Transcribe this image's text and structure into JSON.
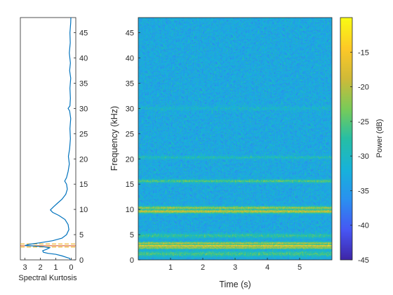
{
  "chart_data": [
    {
      "type": "line",
      "xlabel": "Spectral Kurtosis",
      "xlim": [
        3.3,
        -0.3
      ],
      "x_reversed": true,
      "x_ticks": [
        "3",
        "2",
        "1",
        "0"
      ],
      "y_ticks": [
        "0",
        "5",
        "10",
        "15",
        "20",
        "25",
        "30",
        "35",
        "40",
        "45"
      ],
      "ylim": [
        0,
        48
      ],
      "y_axis_location": "right",
      "series": [
        {
          "color": "#0072BD",
          "points": [
            {
              "x": 0.05,
              "y": 0.0
            },
            {
              "x": 0.1,
              "y": 0.3
            },
            {
              "x": 0.3,
              "y": 0.5
            },
            {
              "x": 0.6,
              "y": 0.8
            },
            {
              "x": 1.0,
              "y": 1.1
            },
            {
              "x": 1.5,
              "y": 1.3
            },
            {
              "x": 1.8,
              "y": 1.5
            },
            {
              "x": 1.85,
              "y": 1.8
            },
            {
              "x": 1.6,
              "y": 2.1
            },
            {
              "x": 1.4,
              "y": 2.4
            },
            {
              "x": 1.8,
              "y": 2.6
            },
            {
              "x": 2.4,
              "y": 2.75
            },
            {
              "x": 3.0,
              "y": 2.85
            },
            {
              "x": 2.7,
              "y": 3.1
            },
            {
              "x": 2.0,
              "y": 3.4
            },
            {
              "x": 1.2,
              "y": 3.8
            },
            {
              "x": 0.6,
              "y": 4.3
            },
            {
              "x": 0.3,
              "y": 5.0
            },
            {
              "x": 0.15,
              "y": 6.0
            },
            {
              "x": 0.2,
              "y": 7.0
            },
            {
              "x": 0.4,
              "y": 8.0
            },
            {
              "x": 0.8,
              "y": 8.8
            },
            {
              "x": 1.2,
              "y": 9.4
            },
            {
              "x": 1.35,
              "y": 9.9
            },
            {
              "x": 1.15,
              "y": 10.5
            },
            {
              "x": 0.9,
              "y": 11.2
            },
            {
              "x": 0.6,
              "y": 12.0
            },
            {
              "x": 0.35,
              "y": 13.0
            },
            {
              "x": 0.25,
              "y": 14.0
            },
            {
              "x": 0.3,
              "y": 15.0
            },
            {
              "x": 0.42,
              "y": 15.6
            },
            {
              "x": 0.3,
              "y": 16.3
            },
            {
              "x": 0.2,
              "y": 17.5
            },
            {
              "x": 0.12,
              "y": 19.0
            },
            {
              "x": 0.18,
              "y": 20.5
            },
            {
              "x": 0.1,
              "y": 22.0
            },
            {
              "x": 0.05,
              "y": 24.0
            },
            {
              "x": 0.08,
              "y": 26.0
            },
            {
              "x": 0.03,
              "y": 28.0
            },
            {
              "x": 0.1,
              "y": 29.5
            },
            {
              "x": 0.2,
              "y": 30.0
            },
            {
              "x": 0.08,
              "y": 30.5
            },
            {
              "x": 0.05,
              "y": 32.0
            },
            {
              "x": 0.08,
              "y": 34.0
            },
            {
              "x": 0.03,
              "y": 36.0
            },
            {
              "x": 0.1,
              "y": 37.5
            },
            {
              "x": 0.05,
              "y": 39.0
            },
            {
              "x": 0.12,
              "y": 41.0
            },
            {
              "x": 0.06,
              "y": 43.0
            },
            {
              "x": 0.08,
              "y": 45.0
            },
            {
              "x": 0.03,
              "y": 47.0
            },
            {
              "x": 0.02,
              "y": 48.0
            }
          ]
        }
      ],
      "threshold_lines": [
        {
          "y": 2.55,
          "color": "#EDB120",
          "style": "dashed"
        },
        {
          "y": 2.8,
          "color": "#D95319",
          "style": "solid"
        },
        {
          "y": 3.15,
          "color": "#EDB120",
          "style": "dashed"
        }
      ]
    },
    {
      "type": "heatmap",
      "xlabel": "Time (s)",
      "ylabel": "Frequency (kHz)",
      "xlim": [
        0,
        6
      ],
      "ylim": [
        0,
        48
      ],
      "x_ticks": [
        "1",
        "2",
        "3",
        "4",
        "5"
      ],
      "y_ticks": [
        "0",
        "5",
        "10",
        "15",
        "20",
        "25",
        "30",
        "35",
        "40",
        "45"
      ],
      "colormap": "parula",
      "background_power_db": -33,
      "power_bands": [
        {
          "freq_khz": 2.8,
          "width_khz": 0.4,
          "power_db": -14
        },
        {
          "freq_khz": 2.4,
          "width_khz": 0.5,
          "power_db": -20
        },
        {
          "freq_khz": 3.3,
          "width_khz": 0.5,
          "power_db": -20
        },
        {
          "freq_khz": 1.2,
          "width_khz": 1.0,
          "power_db": -26
        },
        {
          "freq_khz": 4.8,
          "width_khz": 0.8,
          "power_db": -27
        },
        {
          "freq_khz": 9.6,
          "width_khz": 0.7,
          "power_db": -19
        },
        {
          "freq_khz": 10.3,
          "width_khz": 0.6,
          "power_db": -21
        },
        {
          "freq_khz": 15.6,
          "width_khz": 0.6,
          "power_db": -25
        },
        {
          "freq_khz": 20.3,
          "width_khz": 0.6,
          "power_db": -29
        },
        {
          "freq_khz": 30.0,
          "width_khz": 0.8,
          "power_db": -31
        },
        {
          "freq_khz": 48.0,
          "width_khz": 0.8,
          "power_db": -37
        }
      ],
      "colorbar": {
        "label": "Power (dB)",
        "range": [
          -45,
          -10
        ],
        "ticks": [
          "-15",
          "-20",
          "-25",
          "-30",
          "-35",
          "-40",
          "-45"
        ]
      }
    }
  ]
}
